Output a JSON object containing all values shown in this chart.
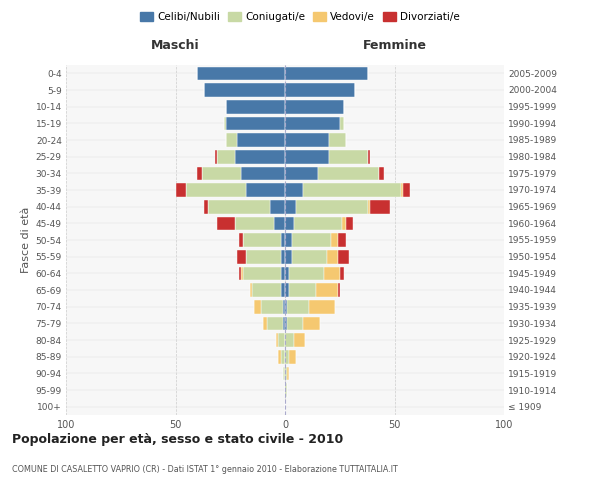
{
  "age_groups": [
    "100+",
    "95-99",
    "90-94",
    "85-89",
    "80-84",
    "75-79",
    "70-74",
    "65-69",
    "60-64",
    "55-59",
    "50-54",
    "45-49",
    "40-44",
    "35-39",
    "30-34",
    "25-29",
    "20-24",
    "15-19",
    "10-14",
    "5-9",
    "0-4"
  ],
  "birth_years": [
    "≤ 1909",
    "1910-1914",
    "1915-1919",
    "1920-1924",
    "1925-1929",
    "1930-1934",
    "1935-1939",
    "1940-1944",
    "1945-1949",
    "1950-1954",
    "1955-1959",
    "1960-1964",
    "1965-1969",
    "1970-1974",
    "1975-1979",
    "1980-1984",
    "1985-1989",
    "1990-1994",
    "1995-1999",
    "2000-2004",
    "2005-2009"
  ],
  "maschi": {
    "celibi": [
      0,
      0,
      0,
      0,
      0,
      1,
      1,
      2,
      2,
      2,
      2,
      5,
      7,
      18,
      20,
      23,
      22,
      27,
      27,
      37,
      40
    ],
    "coniugati": [
      0,
      0,
      1,
      2,
      3,
      7,
      10,
      13,
      17,
      16,
      17,
      18,
      28,
      27,
      18,
      8,
      5,
      1,
      0,
      0,
      0
    ],
    "vedovi": [
      0,
      0,
      0,
      1,
      1,
      2,
      3,
      1,
      1,
      0,
      0,
      0,
      0,
      0,
      0,
      0,
      0,
      0,
      0,
      0,
      0
    ],
    "divorziati": [
      0,
      0,
      0,
      0,
      0,
      0,
      0,
      0,
      1,
      4,
      2,
      8,
      2,
      5,
      2,
      1,
      0,
      0,
      0,
      0,
      0
    ]
  },
  "femmine": {
    "nubili": [
      0,
      0,
      0,
      0,
      0,
      1,
      1,
      2,
      2,
      3,
      3,
      4,
      5,
      8,
      15,
      20,
      20,
      25,
      27,
      32,
      38
    ],
    "coniugate": [
      0,
      1,
      1,
      2,
      4,
      7,
      10,
      12,
      16,
      16,
      18,
      22,
      33,
      45,
      28,
      18,
      8,
      2,
      0,
      0,
      0
    ],
    "vedove": [
      0,
      0,
      1,
      3,
      5,
      8,
      12,
      10,
      7,
      5,
      3,
      2,
      1,
      1,
      0,
      0,
      0,
      0,
      0,
      0,
      0
    ],
    "divorziate": [
      0,
      0,
      0,
      0,
      0,
      0,
      0,
      1,
      2,
      5,
      4,
      3,
      9,
      3,
      2,
      1,
      0,
      0,
      0,
      0,
      0
    ]
  },
  "colors": {
    "celibi": "#4878a8",
    "coniugati": "#c8d9a5",
    "vedovi": "#f5c870",
    "divorziati": "#c83030"
  },
  "xlim": 100,
  "title": "Popolazione per età, sesso e stato civile - 2010",
  "subtitle": "COMUNE DI CASALETTO VAPRIO (CR) - Dati ISTAT 1° gennaio 2010 - Elaborazione TUTTAITALIA.IT",
  "ylabel_left": "Fasce di età",
  "xlabel_maschi": "Maschi",
  "xlabel_femmine": "Femmine"
}
